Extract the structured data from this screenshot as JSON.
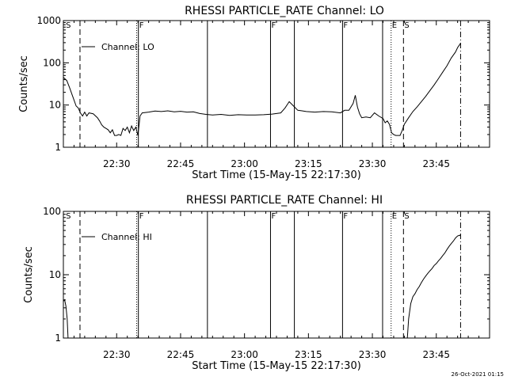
{
  "footer": {
    "timestamp": "26-Oct-2021 01:15"
  },
  "chart_data": [
    {
      "type": "line",
      "title": "RHESSI PARTICLE_RATE Channel: LO",
      "xlabel": "Start Time (15-May-15 22:17:30)",
      "ylabel": "Counts/sec",
      "x_unit": "minutes since 22:17:30",
      "xlim": [
        0,
        100
      ],
      "ylim": [
        1,
        1000
      ],
      "yscale": "log",
      "xticks": [
        {
          "x": 12.5,
          "label": "22:30"
        },
        {
          "x": 27.5,
          "label": "22:45"
        },
        {
          "x": 42.5,
          "label": "23:00"
        },
        {
          "x": 57.5,
          "label": "23:15"
        },
        {
          "x": 72.5,
          "label": "23:30"
        },
        {
          "x": 87.5,
          "label": "23:45"
        }
      ],
      "yticks": [
        {
          "y": 1,
          "label": "1"
        },
        {
          "y": 10,
          "label": "10"
        },
        {
          "y": 100,
          "label": "100"
        },
        {
          "y": 1000,
          "label": "1000"
        }
      ],
      "legend": {
        "label": "Channel: LO",
        "position": "top-left"
      },
      "markers": [
        {
          "x": 0.4,
          "style": "none",
          "label": "S"
        },
        {
          "x": 3.9,
          "style": "dashed",
          "label": ""
        },
        {
          "x": 17.2,
          "style": "dotted",
          "label": ""
        },
        {
          "x": 17.6,
          "style": "solid",
          "label": "F"
        },
        {
          "x": 33.8,
          "style": "solid",
          "label": ""
        },
        {
          "x": 48.6,
          "style": "solid",
          "label": "F"
        },
        {
          "x": 54.2,
          "style": "solid",
          "label": ""
        },
        {
          "x": 65.5,
          "style": "solid",
          "label": "F"
        },
        {
          "x": 74.9,
          "style": "solid",
          "label": ""
        },
        {
          "x": 76.9,
          "style": "dotted",
          "label": "E"
        },
        {
          "x": 79.8,
          "style": "dashed",
          "label": "S"
        },
        {
          "x": 93.2,
          "style": "dashdot",
          "label": ""
        }
      ],
      "series": [
        {
          "name": "Channel: LO",
          "x": [
            0,
            0.8,
            1.5,
            2,
            2.5,
            3,
            3.5,
            4,
            4.5,
            5,
            5.5,
            6,
            7,
            8,
            8.5,
            9,
            9.5,
            10,
            10.5,
            11,
            11.5,
            12,
            12.5,
            13,
            13.5,
            14,
            14.5,
            15,
            15.5,
            16,
            16.5,
            17,
            17.5,
            18,
            18.5,
            20,
            21.5,
            23,
            24.5,
            26,
            27.5,
            29,
            30.5,
            32,
            33.5,
            35,
            37,
            39,
            41,
            43,
            45,
            47,
            49,
            51,
            52,
            53,
            54,
            55,
            56,
            57,
            59,
            61,
            63,
            65,
            66,
            67,
            68,
            68.5,
            69,
            69.5,
            70,
            71,
            72,
            73,
            74,
            75,
            75.5,
            76,
            76.5,
            77,
            77.5,
            78,
            78.5,
            79,
            79.5,
            80,
            81,
            82,
            83,
            84,
            85,
            86,
            87,
            88,
            89,
            90,
            91,
            92,
            92.5,
            93,
            93.2
          ],
          "values": [
            45,
            38,
            25,
            18,
            13,
            9.5,
            8.5,
            6.5,
            5.5,
            6.8,
            5.5,
            6.5,
            6.2,
            5,
            4.2,
            3.4,
            3,
            2.8,
            2.6,
            2.2,
            2.6,
            1.9,
            1.9,
            2.0,
            1.9,
            2.8,
            2.5,
            3.0,
            2.2,
            3.2,
            2.5,
            3.0,
            1.9,
            5.5,
            6.5,
            6.8,
            7.2,
            7.0,
            7.3,
            6.9,
            7.1,
            6.8,
            6.9,
            6.3,
            6.0,
            5.8,
            6.0,
            5.7,
            5.9,
            5.8,
            5.8,
            5.9,
            6.1,
            6.5,
            8.5,
            12,
            9.5,
            7.5,
            7.3,
            7.0,
            6.8,
            7.0,
            6.9,
            6.5,
            7.5,
            7.5,
            11,
            17,
            9,
            6.2,
            5.0,
            5.2,
            5.0,
            6.5,
            5.5,
            4.8,
            3.8,
            4.2,
            3.5,
            2.2,
            2.0,
            1.9,
            1.9,
            1.9,
            2.5,
            3.5,
            5,
            7,
            9,
            12,
            16,
            22,
            30,
            42,
            60,
            85,
            130,
            180,
            230,
            270,
            290
          ]
        }
      ]
    },
    {
      "type": "line",
      "title": "RHESSI PARTICLE_RATE Channel: HI",
      "xlabel": "Start Time (15-May-15 22:17:30)",
      "ylabel": "Counts/sec",
      "x_unit": "minutes since 22:17:30",
      "xlim": [
        0,
        100
      ],
      "ylim": [
        1,
        100
      ],
      "yscale": "log",
      "xticks": [
        {
          "x": 12.5,
          "label": "22:30"
        },
        {
          "x": 27.5,
          "label": "22:45"
        },
        {
          "x": 42.5,
          "label": "23:00"
        },
        {
          "x": 57.5,
          "label": "23:15"
        },
        {
          "x": 72.5,
          "label": "23:30"
        },
        {
          "x": 87.5,
          "label": "23:45"
        }
      ],
      "yticks": [
        {
          "y": 1,
          "label": "1"
        },
        {
          "y": 10,
          "label": "10"
        },
        {
          "y": 100,
          "label": "100"
        }
      ],
      "legend": {
        "label": "Channel: HI",
        "position": "top-left"
      },
      "markers": [
        {
          "x": 0.4,
          "style": "none",
          "label": "S"
        },
        {
          "x": 3.9,
          "style": "dashed",
          "label": ""
        },
        {
          "x": 17.2,
          "style": "dotted",
          "label": ""
        },
        {
          "x": 17.6,
          "style": "solid",
          "label": "F"
        },
        {
          "x": 33.8,
          "style": "solid",
          "label": ""
        },
        {
          "x": 48.6,
          "style": "solid",
          "label": "F"
        },
        {
          "x": 54.2,
          "style": "solid",
          "label": ""
        },
        {
          "x": 65.5,
          "style": "solid",
          "label": "F"
        },
        {
          "x": 74.9,
          "style": "solid",
          "label": ""
        },
        {
          "x": 76.9,
          "style": "dotted",
          "label": "E"
        },
        {
          "x": 79.8,
          "style": "dashed",
          "label": "S"
        },
        {
          "x": 93.2,
          "style": "dashdot",
          "label": ""
        }
      ],
      "series": [
        {
          "name": "Channel: HI",
          "x": [
            0,
            0.3,
            0.6,
            0.9,
            1.1
          ],
          "values": [
            3.8,
            4.0,
            3.2,
            2.0,
            1.0
          ]
        },
        {
          "name": "Channel: HI",
          "x": [
            80.7,
            81,
            81.5,
            82,
            82.5,
            83,
            83.5,
            84,
            84.5,
            85,
            85.5,
            86,
            86.5,
            87,
            87.5,
            88,
            88.5,
            89,
            89.5,
            90,
            90.5,
            91,
            91.5,
            92,
            92.5,
            93,
            93.2
          ],
          "values": [
            1.0,
            2.0,
            3.5,
            4.5,
            5.0,
            5.8,
            6.5,
            7.5,
            8.5,
            9.5,
            10.5,
            11.5,
            12.5,
            14,
            15,
            16.5,
            18,
            20,
            22,
            25,
            28,
            31,
            34,
            38,
            41,
            42,
            41
          ]
        }
      ]
    }
  ]
}
